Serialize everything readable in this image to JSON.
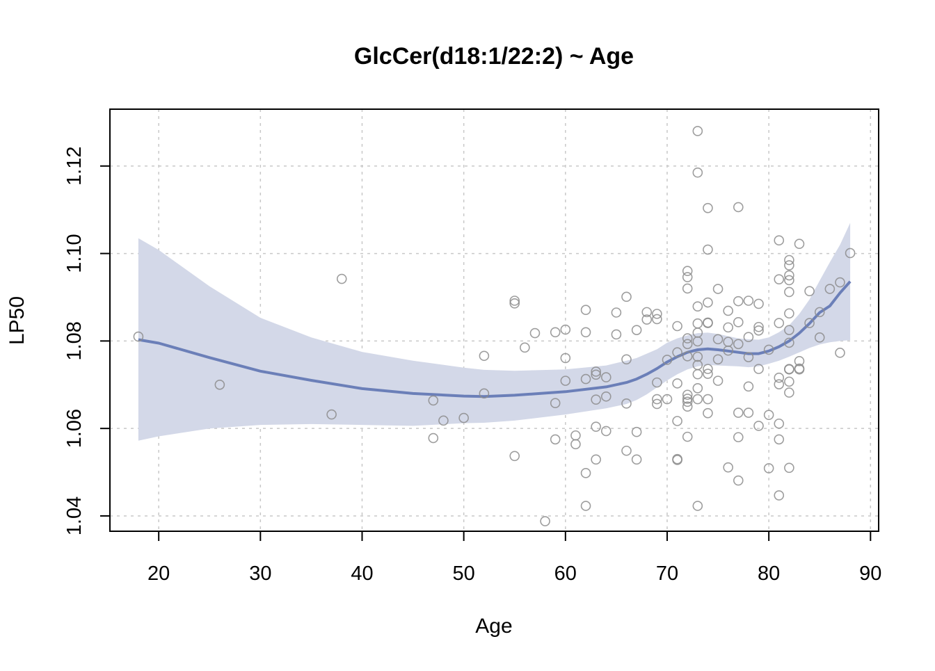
{
  "chart_data": {
    "type": "scatter",
    "title": "GlcCer(d18:1/22:2) ~ Age",
    "xlabel": "Age",
    "ylabel": "LP50",
    "xlim": [
      15.2,
      90.8
    ],
    "ylim": [
      1.0365,
      1.133
    ],
    "x_ticks": [
      20,
      30,
      40,
      50,
      60,
      70,
      80,
      90
    ],
    "y_ticks": [
      1.04,
      1.06,
      1.08,
      1.1,
      1.12
    ],
    "x_tick_labels": [
      "20",
      "30",
      "40",
      "50",
      "60",
      "70",
      "80",
      "90"
    ],
    "y_tick_labels": [
      "1.04",
      "1.06",
      "1.08",
      "1.10",
      "1.12"
    ],
    "grid": true,
    "colors": {
      "points": "#8c8c8c",
      "fit_line": "#6b7fb8",
      "band": "#d3d8e8",
      "grid": "#c8c8c8"
    },
    "points": [
      [
        18,
        1.081
      ],
      [
        26,
        1.07
      ],
      [
        37,
        1.0632
      ],
      [
        38,
        1.0942
      ],
      [
        47,
        1.0664
      ],
      [
        47,
        1.0578
      ],
      [
        48,
        1.0618
      ],
      [
        50,
        1.0624
      ],
      [
        52,
        1.0766
      ],
      [
        52,
        1.068
      ],
      [
        55,
        1.0892
      ],
      [
        55,
        1.0886
      ],
      [
        55,
        1.0537
      ],
      [
        56,
        1.0785
      ],
      [
        57,
        1.0818
      ],
      [
        58,
        1.0388
      ],
      [
        59,
        1.082
      ],
      [
        59,
        1.0658
      ],
      [
        59,
        1.0575
      ],
      [
        60,
        1.0826
      ],
      [
        60,
        1.0761
      ],
      [
        60,
        1.0709
      ],
      [
        61,
        1.0584
      ],
      [
        61,
        1.0564
      ],
      [
        62,
        1.0871
      ],
      [
        62,
        1.082
      ],
      [
        62,
        1.0713
      ],
      [
        62,
        1.0498
      ],
      [
        62,
        1.0423
      ],
      [
        63,
        1.073
      ],
      [
        63,
        1.0723
      ],
      [
        63,
        1.0666
      ],
      [
        63,
        1.0604
      ],
      [
        63,
        1.0529
      ],
      [
        64,
        1.0717
      ],
      [
        64,
        1.0673
      ],
      [
        64,
        1.0594
      ],
      [
        65,
        1.0865
      ],
      [
        65,
        1.0815
      ],
      [
        66,
        1.0901
      ],
      [
        66,
        1.0758
      ],
      [
        66,
        1.0657
      ],
      [
        66,
        1.0549
      ],
      [
        67,
        1.0825
      ],
      [
        67,
        1.0592
      ],
      [
        67,
        1.0529
      ],
      [
        68,
        1.0866
      ],
      [
        68,
        1.0849
      ],
      [
        69,
        1.0862
      ],
      [
        69,
        1.085
      ],
      [
        69,
        1.0705
      ],
      [
        69,
        1.0667
      ],
      [
        69,
        1.0656
      ],
      [
        70,
        1.0757
      ],
      [
        70,
        1.0667
      ],
      [
        71,
        1.0834
      ],
      [
        71,
        1.0774
      ],
      [
        71,
        1.0703
      ],
      [
        71,
        1.0617
      ],
      [
        71,
        1.053
      ],
      [
        71,
        1.0528
      ],
      [
        72,
        1.096
      ],
      [
        72,
        1.0946
      ],
      [
        72,
        1.092
      ],
      [
        72,
        1.0806
      ],
      [
        72,
        1.0793
      ],
      [
        72,
        1.0765
      ],
      [
        72,
        1.0677
      ],
      [
        72,
        1.0668
      ],
      [
        72,
        1.0661
      ],
      [
        72,
        1.065
      ],
      [
        72,
        1.0581
      ],
      [
        73,
        1.128
      ],
      [
        73,
        1.1185
      ],
      [
        73,
        1.0879
      ],
      [
        73,
        1.084
      ],
      [
        73,
        1.0819
      ],
      [
        73,
        1.0799
      ],
      [
        73,
        1.0764
      ],
      [
        73,
        1.0745
      ],
      [
        73,
        1.0724
      ],
      [
        73,
        1.0692
      ],
      [
        73,
        1.0667
      ],
      [
        73,
        1.0423
      ],
      [
        74,
        1.1104
      ],
      [
        74,
        1.1009
      ],
      [
        74,
        1.0888
      ],
      [
        74,
        1.0842
      ],
      [
        74,
        1.0841
      ],
      [
        74,
        1.0736
      ],
      [
        74,
        1.0725
      ],
      [
        74,
        1.0667
      ],
      [
        74,
        1.0635
      ],
      [
        75,
        1.0919
      ],
      [
        75,
        1.0804
      ],
      [
        75,
        1.0758
      ],
      [
        75,
        1.0709
      ],
      [
        76,
        1.0869
      ],
      [
        76,
        1.0831
      ],
      [
        76,
        1.0798
      ],
      [
        76,
        1.0778
      ],
      [
        76,
        1.0511
      ],
      [
        77,
        1.1106
      ],
      [
        77,
        1.0891
      ],
      [
        77,
        1.0843
      ],
      [
        77,
        1.0793
      ],
      [
        77,
        1.0636
      ],
      [
        77,
        1.058
      ],
      [
        77,
        1.0481
      ],
      [
        78,
        1.0892
      ],
      [
        78,
        1.0809
      ],
      [
        78,
        1.0763
      ],
      [
        78,
        1.0696
      ],
      [
        78,
        1.0636
      ],
      [
        79,
        1.0885
      ],
      [
        79,
        1.0832
      ],
      [
        79,
        1.0824
      ],
      [
        79,
        1.0736
      ],
      [
        79,
        1.0606
      ],
      [
        80,
        1.078
      ],
      [
        80,
        1.0631
      ],
      [
        80,
        1.0509
      ],
      [
        81,
        1.103
      ],
      [
        81,
        1.0941
      ],
      [
        81,
        1.0841
      ],
      [
        81,
        1.0716
      ],
      [
        81,
        1.0701
      ],
      [
        81,
        1.0611
      ],
      [
        81,
        1.0575
      ],
      [
        81,
        1.0447
      ],
      [
        82,
        1.0985
      ],
      [
        82,
        1.0973
      ],
      [
        82,
        1.095
      ],
      [
        82,
        1.0939
      ],
      [
        82,
        1.0912
      ],
      [
        82,
        1.0863
      ],
      [
        82,
        1.0825
      ],
      [
        82,
        1.0796
      ],
      [
        82,
        1.0736
      ],
      [
        82,
        1.0735
      ],
      [
        82,
        1.0707
      ],
      [
        82,
        1.0682
      ],
      [
        82,
        1.051
      ],
      [
        83,
        1.1022
      ],
      [
        83,
        1.0754
      ],
      [
        83,
        1.0737
      ],
      [
        83,
        1.0735
      ],
      [
        84,
        1.0914
      ],
      [
        84,
        1.0841
      ],
      [
        85,
        1.0866
      ],
      [
        85,
        1.0808
      ],
      [
        86,
        1.0919
      ],
      [
        87,
        1.0934
      ],
      [
        87,
        1.0773
      ],
      [
        88,
        1.1001
      ]
    ],
    "fit": {
      "x": [
        18,
        20,
        25,
        30,
        35,
        40,
        45,
        50,
        52,
        55,
        60,
        64,
        66,
        67,
        68,
        69,
        70,
        71,
        72,
        73,
        74,
        75,
        76,
        77,
        78,
        79,
        80,
        81,
        82,
        83,
        84,
        85,
        86,
        87,
        88
      ],
      "y": [
        1.0803,
        1.0795,
        1.0762,
        1.0731,
        1.071,
        1.0691,
        1.068,
        1.0674,
        1.0673,
        1.0676,
        1.0684,
        1.0695,
        1.0705,
        1.0713,
        1.0724,
        1.0737,
        1.0752,
        1.0764,
        1.0774,
        1.078,
        1.0782,
        1.078,
        1.0777,
        1.0774,
        1.0771,
        1.0771,
        1.0777,
        1.0787,
        1.08,
        1.0818,
        1.084,
        1.0865,
        1.088,
        1.091,
        1.0936
      ],
      "lower": [
        1.0572,
        1.0582,
        1.06,
        1.0608,
        1.061,
        1.0608,
        1.0606,
        1.0612,
        1.0613,
        1.0618,
        1.0632,
        1.0646,
        1.0656,
        1.0665,
        1.0678,
        1.0694,
        1.071,
        1.0724,
        1.0735,
        1.0742,
        1.0745,
        1.0744,
        1.0743,
        1.0742,
        1.074,
        1.0742,
        1.0748,
        1.0755,
        1.0764,
        1.0774,
        1.0784,
        1.0792,
        1.0797,
        1.08,
        1.0802
      ],
      "upper": [
        1.1035,
        1.1008,
        1.0925,
        1.0853,
        1.0808,
        1.0775,
        1.0755,
        1.0739,
        1.0734,
        1.0732,
        1.0735,
        1.0744,
        1.0755,
        1.0761,
        1.0771,
        1.0781,
        1.0796,
        1.0806,
        1.0813,
        1.0818,
        1.0819,
        1.0816,
        1.0811,
        1.0806,
        1.0804,
        1.0803,
        1.0808,
        1.082,
        1.0836,
        1.0862,
        1.0895,
        1.0938,
        1.098,
        1.102,
        1.107
      ]
    }
  }
}
